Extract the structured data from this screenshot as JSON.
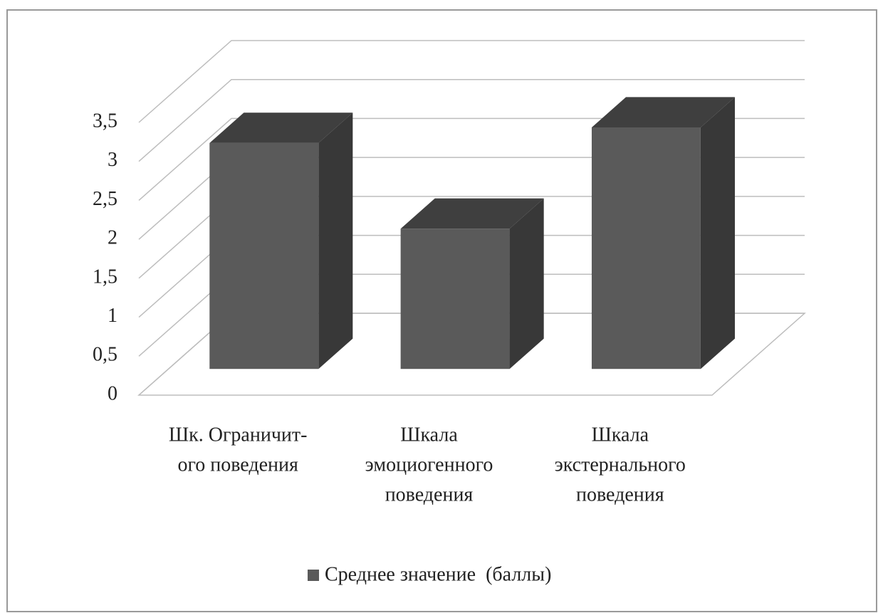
{
  "chart_data": {
    "type": "bar3d",
    "categories": [
      [
        "Шк. Ограничит-",
        "ого поведения"
      ],
      [
        "Шкала",
        "эмоциогенного",
        "поведения"
      ],
      [
        "Шкала",
        "экстернального",
        "поведения"
      ]
    ],
    "series": [
      {
        "name": "Среднее значение  (баллы)",
        "color": "#5a5a5a",
        "values": [
          2.9,
          1.8,
          3.1
        ]
      }
    ],
    "ylim": [
      0,
      3.5
    ],
    "yticks": [
      0,
      {
        "value": 0.5,
        "label": "0,5"
      },
      1,
      {
        "value": 1.5,
        "label": "1,5"
      },
      2,
      {
        "value": 2.5,
        "label": "2,5"
      },
      3,
      {
        "value": 3.5,
        "label": "3,5"
      }
    ],
    "grid": true,
    "legend": "bottom"
  }
}
